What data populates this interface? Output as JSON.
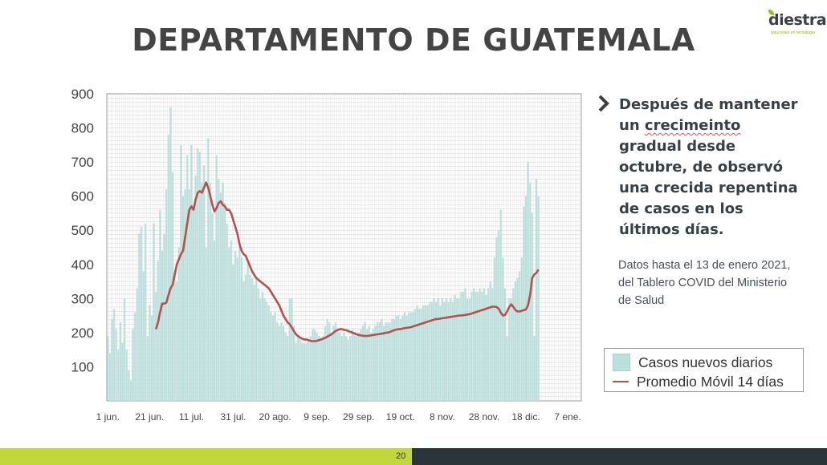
{
  "logo": {
    "name": "diestra",
    "tagline": "soluciones en tecnologia"
  },
  "title": "DEPARTAMENTO DE GUATEMALA",
  "bullet_icon": "chevron-right-icon",
  "lead": {
    "before": "Después de mantener un ",
    "misspelled": "crecimeinto",
    "after": " gradual desde octubre, de observó una crecida repentina de casos en los últimos días."
  },
  "note": "Datos hasta el 13 de enero 2021, del Tablero COVID del Ministerio de Salud",
  "legend": {
    "bars": "Casos nuevos diarios",
    "line": "Promedio Móvil 14 días"
  },
  "page_number": "20",
  "colors": {
    "bars": "#b9e0dc",
    "line": "#b0524f",
    "grid": "#d4d4d4",
    "footer_left": "#c2d83a",
    "footer_right": "#2b3438"
  },
  "chart_data": {
    "type": "bar",
    "title": "",
    "xlabel": "",
    "ylabel": "",
    "ylim": [
      0,
      900
    ],
    "yticks": [
      100,
      200,
      300,
      400,
      500,
      600,
      700,
      800,
      900
    ],
    "x_start": "2020-06-01",
    "x_end": "2021-01-13",
    "xtick_labels": [
      {
        "date": "2020-06-01",
        "label": "1 jun."
      },
      {
        "date": "2020-06-21",
        "label": "21 jun."
      },
      {
        "date": "2020-07-11",
        "label": "11 jul."
      },
      {
        "date": "2020-07-31",
        "label": "31 jul."
      },
      {
        "date": "2020-08-20",
        "label": "20 ago."
      },
      {
        "date": "2020-09-09",
        "label": "9 sep."
      },
      {
        "date": "2020-09-29",
        "label": "29 sep."
      },
      {
        "date": "2020-10-19",
        "label": "19 oct."
      },
      {
        "date": "2020-11-08",
        "label": "8 nov."
      },
      {
        "date": "2020-11-28",
        "label": "28 nov."
      },
      {
        "date": "2020-12-18",
        "label": "18 dic."
      },
      {
        "date": "2021-01-07",
        "label": "7 ene."
      }
    ],
    "grid": true,
    "legend_position": "bottom-right",
    "series": [
      {
        "name": "Casos nuevos diarios",
        "type": "bar",
        "values": [
          190,
          140,
          240,
          270,
          210,
          150,
          230,
          170,
          300,
          150,
          90,
          60,
          210,
          260,
          330,
          490,
          510,
          380,
          520,
          190,
          280,
          250,
          520,
          320,
          410,
          560,
          440,
          490,
          620,
          780,
          860,
          670,
          380,
          350,
          450,
          750,
          600,
          620,
          720,
          620,
          750,
          560,
          660,
          740,
          730,
          640,
          690,
          450,
          770,
          640,
          550,
          470,
          720,
          650,
          610,
          640,
          580,
          520,
          450,
          470,
          400,
          440,
          420,
          470,
          420,
          350,
          370,
          410,
          370,
          360,
          340,
          360,
          330,
          300,
          320,
          300,
          290,
          280,
          260,
          250,
          260,
          230,
          220,
          230,
          220,
          200,
          190,
          300,
          300,
          220,
          170,
          190,
          180,
          170,
          170,
          170,
          180,
          190,
          210,
          210,
          200,
          190,
          180,
          190,
          220,
          240,
          230,
          200,
          220,
          230,
          210,
          200,
          190,
          200,
          190,
          180,
          190,
          210,
          200,
          190,
          200,
          210,
          220,
          230,
          210,
          220,
          200,
          210,
          220,
          230,
          230,
          240,
          220,
          230,
          230,
          230,
          240,
          240,
          250,
          250,
          240,
          250,
          260,
          250,
          260,
          260,
          260,
          270,
          280,
          270,
          270,
          280,
          280,
          280,
          290,
          290,
          300,
          290,
          300,
          280,
          300,
          290,
          300,
          290,
          300,
          290,
          310,
          300,
          300,
          320,
          320,
          330,
          300,
          300,
          320,
          330,
          320,
          320,
          330,
          320,
          330,
          310,
          330,
          350,
          330,
          420,
          480,
          500,
          560,
          420,
          330,
          190,
          300,
          300,
          330,
          350,
          360,
          380,
          420,
          570,
          600,
          700,
          640,
          550,
          190,
          650,
          600
        ]
      },
      {
        "name": "Promedio Móvil 14 días",
        "type": "line",
        "values": [
          210,
          230,
          260,
          285,
          285,
          288,
          310,
          330,
          340,
          370,
          400,
          415,
          430,
          440,
          480,
          520,
          560,
          570,
          560,
          590,
          610,
          615,
          610,
          625,
          640,
          625,
          600,
          575,
          555,
          565,
          580,
          585,
          575,
          570,
          560,
          560,
          550,
          530,
          510,
          490,
          460,
          440,
          430,
          425,
          410,
          395,
          380,
          370,
          360,
          355,
          350,
          345,
          340,
          335,
          330,
          320,
          310,
          300,
          290,
          280,
          265,
          250,
          240,
          230,
          225,
          215,
          205,
          195,
          190,
          185,
          182,
          180,
          180,
          178,
          176,
          175,
          175,
          176,
          178,
          180,
          182,
          185,
          188,
          192,
          195,
          200,
          205,
          208,
          210,
          210,
          208,
          207,
          205,
          202,
          200,
          198,
          195,
          193,
          192,
          191,
          190,
          190,
          191,
          192,
          193,
          194,
          195,
          196,
          197,
          198,
          200,
          200,
          202,
          205,
          207,
          209,
          210,
          210,
          212,
          213,
          214,
          215,
          216,
          218,
          220,
          222,
          224,
          226,
          228,
          230,
          232,
          234,
          236,
          238,
          240,
          240,
          241,
          242,
          243,
          244,
          245,
          246,
          247,
          248,
          249,
          250,
          250,
          251,
          252,
          253,
          254,
          256,
          258,
          260,
          262,
          264,
          266,
          268,
          270,
          272,
          274,
          276,
          276,
          275,
          270,
          258,
          250,
          252,
          262,
          275,
          283,
          275,
          266,
          262,
          262,
          264,
          266,
          268,
          280,
          310,
          360,
          370,
          375,
          385
        ]
      }
    ]
  }
}
